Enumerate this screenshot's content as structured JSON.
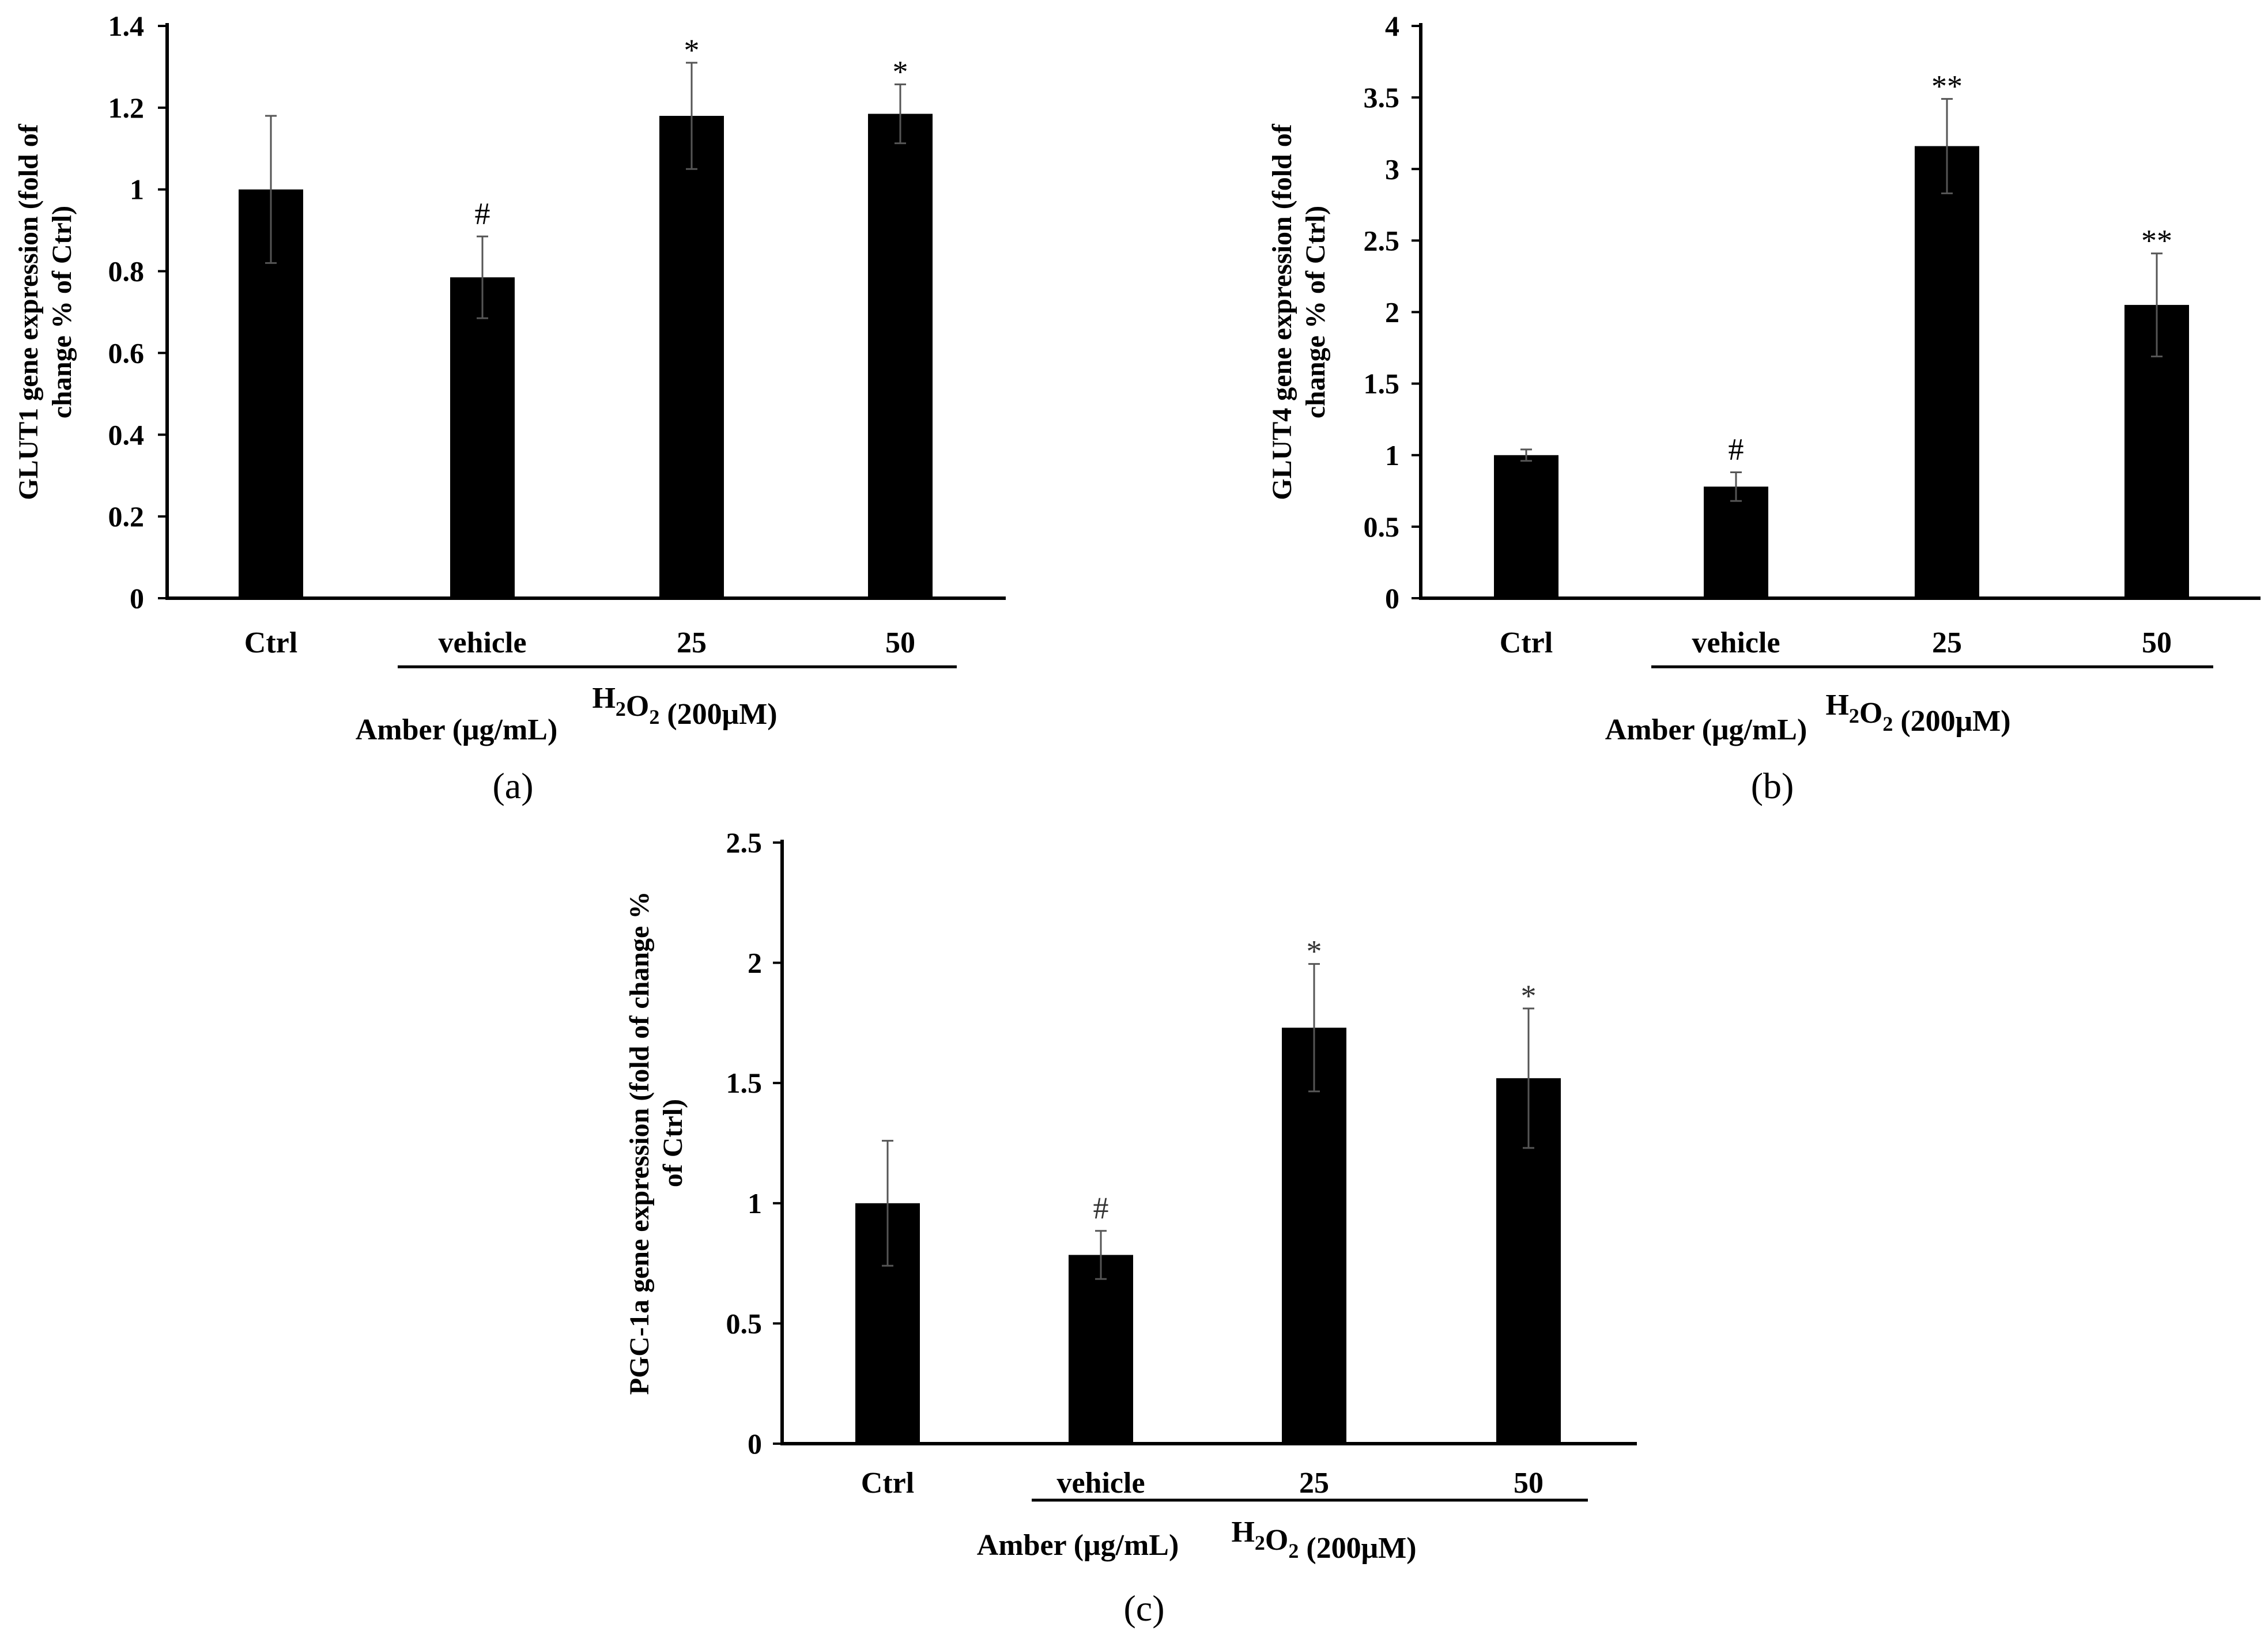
{
  "chart_data": [
    {
      "type": "bar",
      "panel_label": "(a)",
      "ylabel_lines": [
        "GLUT1 gene expression (fold of",
        "change % of Ctrl)"
      ],
      "categories": [
        "Ctrl",
        "vehicle",
        "25",
        "50"
      ],
      "values": [
        1.0,
        0.785,
        1.18,
        1.185
      ],
      "errors": [
        0.18,
        0.1,
        0.13,
        0.072
      ],
      "significance": [
        "",
        "#",
        "*",
        "*"
      ],
      "ylim": [
        0,
        1.4
      ],
      "yticks": [
        0,
        0.2,
        0.4,
        0.6,
        0.8,
        1,
        1.2,
        1.4
      ],
      "ytick_labels": [
        "0",
        "0.2",
        "0.4",
        "0.6",
        "0.8",
        "1",
        "1.2",
        "1.4"
      ],
      "group_label_h2o2": "H2O2 (200μM)",
      "group_label_amber": "Amber (μg/mL)"
    },
    {
      "type": "bar",
      "panel_label": "(b)",
      "ylabel_lines": [
        "GLUT4 gene expression (fold of",
        "change % of Ctrl)"
      ],
      "categories": [
        "Ctrl",
        "vehicle",
        "25",
        "50"
      ],
      "values": [
        1.0,
        0.78,
        3.16,
        2.05
      ],
      "errors": [
        0.04,
        0.1,
        0.33,
        0.36
      ],
      "significance": [
        "",
        "#",
        "**",
        "**"
      ],
      "ylim": [
        0,
        4
      ],
      "yticks": [
        0,
        0.5,
        1,
        1.5,
        2,
        2.5,
        3,
        3.5,
        4
      ],
      "ytick_labels": [
        "0",
        "0.5",
        "1",
        "1.5",
        "2",
        "2.5",
        "3",
        "3.5",
        "4"
      ],
      "group_label_h2o2": "H2O2 (200μM)",
      "group_label_amber": "Amber (μg/mL)"
    },
    {
      "type": "bar",
      "panel_label": "(c)",
      "ylabel_lines": [
        "PGC-1a gene expression (fold of change %",
        "of Ctrl)"
      ],
      "categories": [
        "Ctrl",
        "vehicle",
        "25",
        "50"
      ],
      "values": [
        1.0,
        0.785,
        1.73,
        1.52
      ],
      "errors": [
        0.26,
        0.1,
        0.265,
        0.29
      ],
      "significance": [
        "",
        "#",
        "*",
        "*"
      ],
      "ylim": [
        0,
        2.5
      ],
      "yticks": [
        0,
        0.5,
        1,
        1.5,
        2,
        2.5
      ],
      "ytick_labels": [
        "0",
        "0.5",
        "1",
        "1.5",
        "2",
        "2.5"
      ],
      "group_label_h2o2": "H2O2 (200μM)",
      "group_label_amber": "Amber (μg/mL)"
    }
  ]
}
